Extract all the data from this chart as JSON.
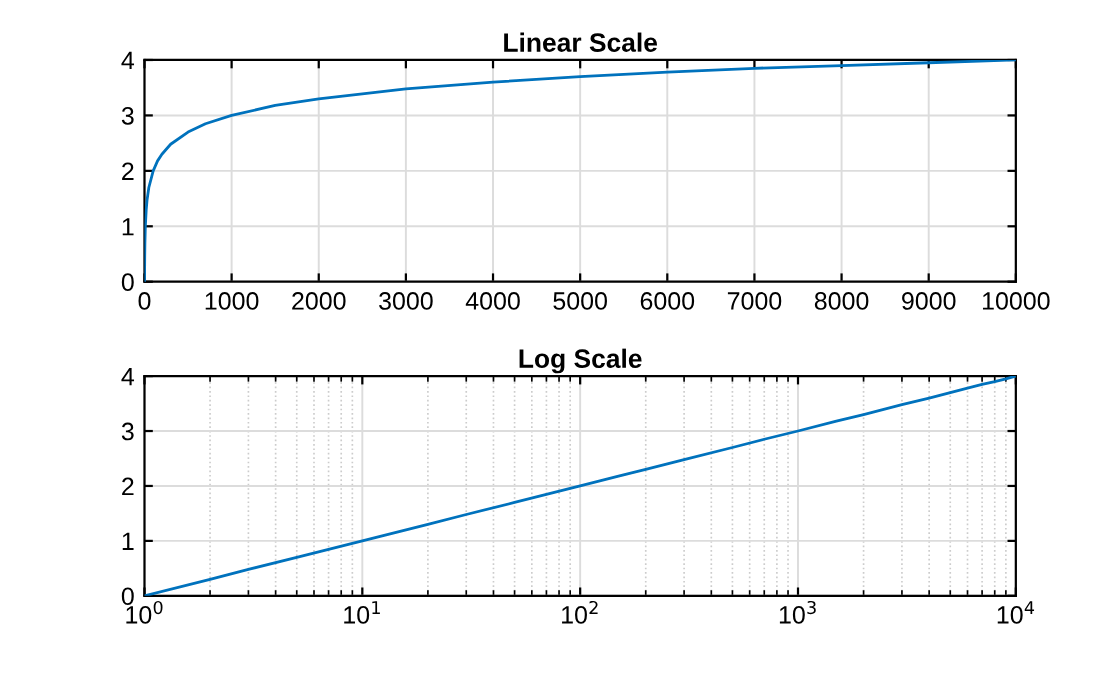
{
  "chart_data": [
    {
      "type": "line",
      "title": "Linear Scale",
      "x": [
        1,
        2,
        3,
        5,
        10,
        20,
        30,
        50,
        100,
        150,
        200,
        300,
        500,
        700,
        1000,
        1500,
        2000,
        3000,
        4000,
        5000,
        6000,
        7000,
        8000,
        9000,
        10000
      ],
      "series": [
        {
          "color": "#0072bd",
          "values": [
            0,
            0.3,
            0.48,
            0.7,
            1,
            1.3,
            1.48,
            1.7,
            2,
            2.18,
            2.3,
            2.48,
            2.7,
            2.85,
            3,
            3.18,
            3.3,
            3.48,
            3.6,
            3.7,
            3.78,
            3.85,
            3.9,
            3.95,
            4
          ]
        }
      ],
      "xlim": [
        0,
        10000
      ],
      "xticks": [
        0,
        1000,
        2000,
        3000,
        4000,
        5000,
        6000,
        7000,
        8000,
        9000,
        10000
      ],
      "ylim": [
        0,
        4
      ],
      "yticks": [
        0,
        1,
        2,
        3,
        4
      ],
      "grid": true,
      "marker": "none",
      "line_style": "solid"
    },
    {
      "type": "line",
      "title": "Log Scale",
      "log": "x",
      "x": [
        1,
        2,
        3,
        5,
        10,
        20,
        30,
        50,
        100,
        150,
        200,
        300,
        500,
        700,
        1000,
        1500,
        2000,
        3000,
        4000,
        5000,
        6000,
        7000,
        8000,
        9000,
        10000
      ],
      "series": [
        {
          "color": "#0072bd",
          "values": [
            0,
            0.3,
            0.48,
            0.7,
            1,
            1.3,
            1.48,
            1.7,
            2,
            2.18,
            2.3,
            2.48,
            2.7,
            2.85,
            3,
            3.18,
            3.3,
            3.48,
            3.6,
            3.7,
            3.78,
            3.85,
            3.9,
            3.95,
            4
          ]
        }
      ],
      "xlim": [
        1,
        10000
      ],
      "xticks": [
        {
          "value": 1,
          "label": "10$^{0}$"
        },
        {
          "value": 10,
          "label": "10$^{1}$"
        },
        {
          "value": 100,
          "label": "10$^{2}$"
        },
        {
          "value": 1000,
          "label": "10$^{3}$"
        },
        {
          "value": 10000,
          "label": "10$^{4}$"
        }
      ],
      "ylim": [
        0,
        4
      ],
      "yticks": [
        0,
        1,
        2,
        3,
        4
      ],
      "grid": true,
      "marker": "none",
      "line_style": "solid"
    }
  ]
}
